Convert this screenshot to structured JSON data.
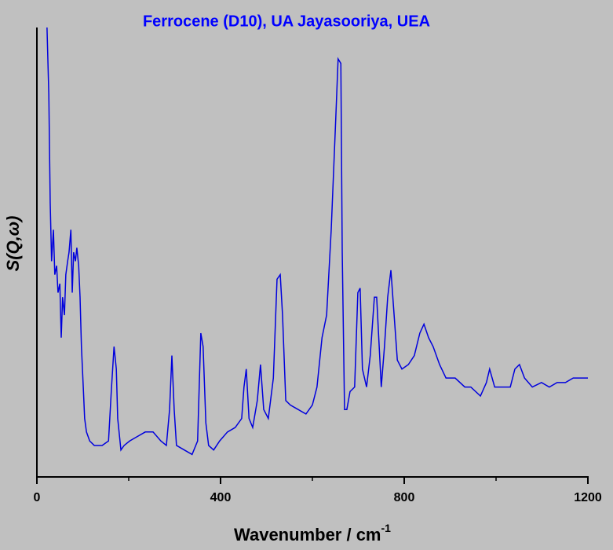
{
  "chart_data": {
    "type": "line",
    "title": "Ferrocene (D10), UA Jayasooriya, UEA",
    "ylabel": "S(Q,ω)",
    "xlabel": {
      "text": "Wavenumber / cm",
      "sup": "-1"
    },
    "xlim": [
      0,
      1200
    ],
    "xticks": [
      0,
      400,
      800,
      1200
    ],
    "xminorticks": [
      200,
      600,
      1000
    ],
    "ylim": [
      0,
      100
    ],
    "series": [
      {
        "name": "Ferrocene (D10)",
        "color": "#0000dd",
        "x": [
          22,
          26,
          29,
          32,
          36,
          39,
          43,
          46,
          50,
          53,
          56,
          60,
          63,
          67,
          70,
          74,
          77,
          80,
          84,
          87,
          91,
          94,
          97,
          101,
          104,
          108,
          115,
          125,
          142,
          156,
          162,
          168,
          173,
          176,
          183,
          190,
          202,
          219,
          236,
          253,
          270,
          282,
          289,
          294,
          299,
          304,
          321,
          338,
          350,
          357,
          362,
          368,
          374,
          385,
          398,
          415,
          432,
          446,
          451,
          456,
          462,
          470,
          480,
          487,
          494,
          504,
          515,
          523,
          530,
          535,
          542,
          552,
          569,
          586,
          600,
          610,
          621,
          631,
          641,
          651,
          656,
          662,
          665,
          670,
          675,
          682,
          692,
          699,
          704,
          709,
          718,
          726,
          735,
          740,
          750,
          757,
          764,
          771,
          778,
          785,
          795,
          809,
          822,
          834,
          843,
          853,
          863,
          877,
          891,
          911,
          932,
          945,
          966,
          979,
          986,
          997,
          1014,
          1031,
          1041,
          1051,
          1062,
          1079,
          1099,
          1116,
          1133,
          1151,
          1168,
          1185,
          1200
        ],
        "values": [
          100,
          85,
          61,
          48,
          55,
          45,
          47,
          41,
          43,
          31,
          40,
          36,
          45,
          48,
          50,
          55,
          41,
          50,
          48,
          51,
          47,
          40,
          29,
          20,
          13,
          10,
          8,
          7,
          7,
          8,
          19,
          29,
          24,
          13,
          6,
          7,
          8,
          9,
          10,
          10,
          8,
          7,
          15,
          27,
          15,
          7,
          6,
          5,
          8,
          32,
          29,
          12,
          7,
          6,
          8,
          10,
          11,
          13,
          20,
          24,
          13,
          11,
          17,
          25,
          15,
          13,
          22,
          44,
          45,
          36,
          17,
          16,
          15,
          14,
          16,
          20,
          31,
          36,
          55,
          80,
          93,
          92,
          50,
          15,
          15,
          19,
          20,
          41,
          42,
          24,
          20,
          27,
          40,
          40,
          20,
          29,
          40,
          46,
          36,
          26,
          24,
          25,
          27,
          32,
          34,
          31,
          29,
          25,
          22,
          22,
          20,
          20,
          18,
          21,
          24,
          20,
          20,
          20,
          24,
          25,
          22,
          20,
          21,
          20,
          21,
          21,
          22,
          22,
          22
        ]
      }
    ]
  }
}
